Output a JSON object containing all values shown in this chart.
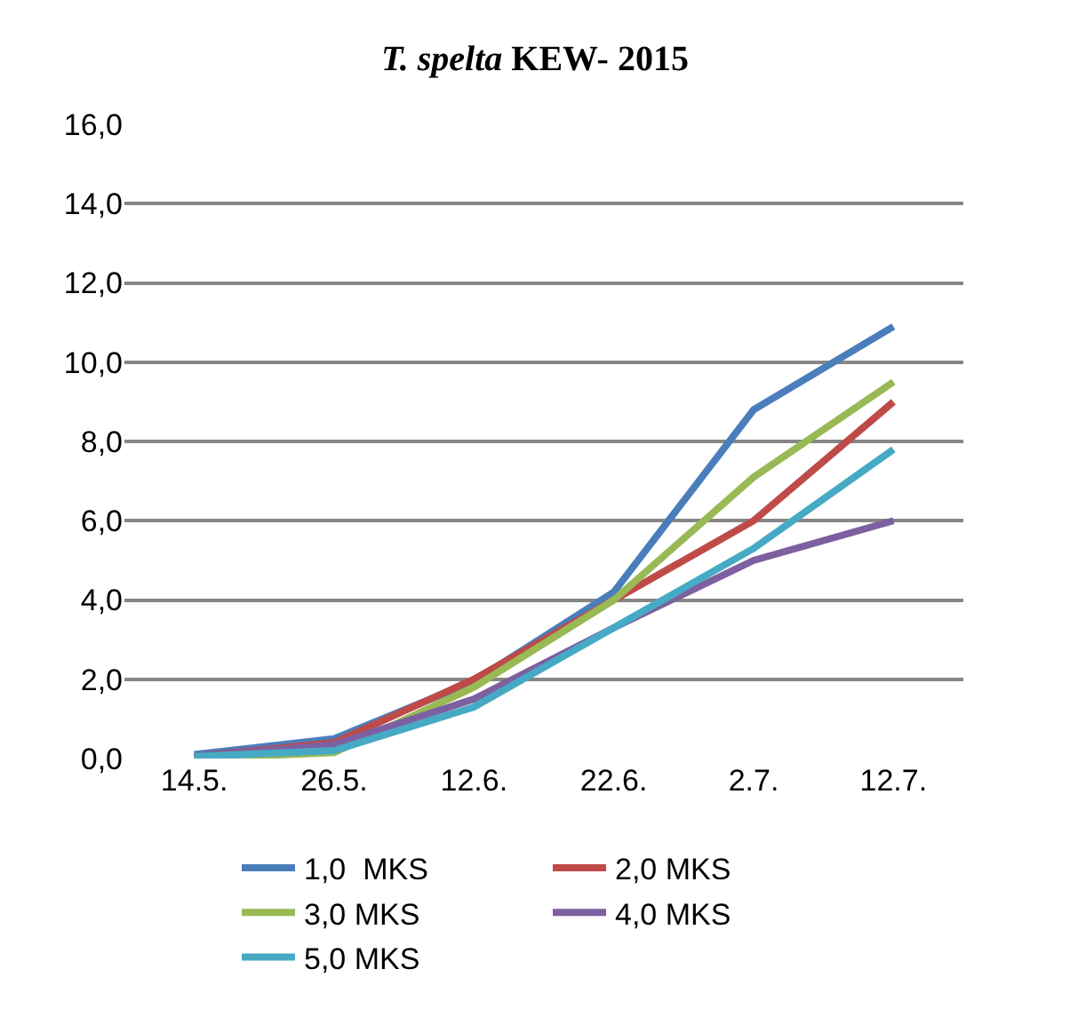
{
  "chart_data": {
    "type": "line",
    "title": "T. spelta KEW- 2015",
    "categories": [
      "14.5.",
      "26.5.",
      "12.6.",
      "22.6.",
      "2.7.",
      "12.7."
    ],
    "series": [
      {
        "name": "1,0  MKS",
        "color": "#4a7ebb",
        "values": [
          0.1,
          0.5,
          1.95,
          4.2,
          8.8,
          10.9
        ]
      },
      {
        "name": "2,0 MKS",
        "color": "#be4b48",
        "values": [
          0.05,
          0.4,
          2.0,
          4.0,
          6.0,
          9.0
        ]
      },
      {
        "name": "3,0 MKS",
        "color": "#98b954",
        "values": [
          0.0,
          0.15,
          1.8,
          4.0,
          7.1,
          9.5
        ]
      },
      {
        "name": "4,0 MKS",
        "color": "#7d60a0",
        "values": [
          0.05,
          0.35,
          1.5,
          3.3,
          5.0,
          6.0
        ]
      },
      {
        "name": "5,0 MKS",
        "color": "#46aac5",
        "values": [
          0.05,
          0.2,
          1.3,
          3.3,
          5.3,
          7.8
        ]
      }
    ],
    "ylim": [
      0,
      16
    ],
    "yticks": [
      {
        "value": 0,
        "label": "0,0"
      },
      {
        "value": 2,
        "label": "2,0"
      },
      {
        "value": 4,
        "label": "4,0"
      },
      {
        "value": 6,
        "label": "6,0"
      },
      {
        "value": 8,
        "label": "8,0"
      },
      {
        "value": 10,
        "label": "10,0"
      },
      {
        "value": 12,
        "label": "12,0"
      },
      {
        "value": 14,
        "label": "14,0"
      },
      {
        "value": 16,
        "label": "16,0"
      }
    ],
    "grid": "y",
    "legend": "bottom",
    "marker": "none",
    "line_style": "solid"
  }
}
